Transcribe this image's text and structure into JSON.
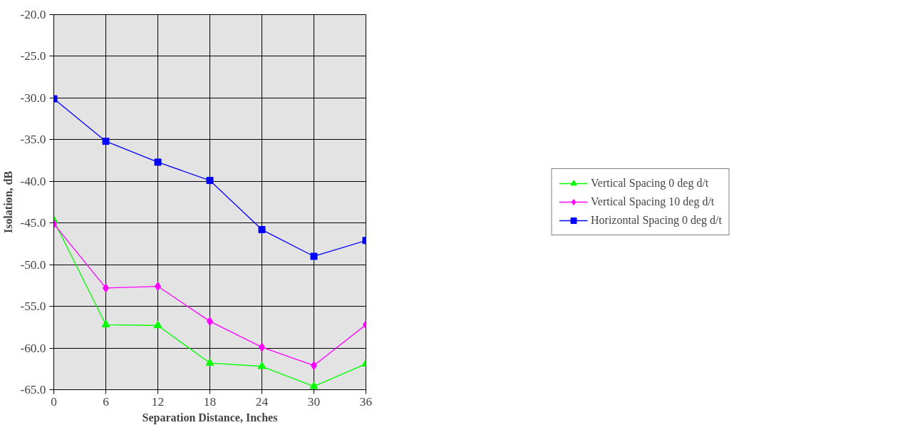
{
  "chart_data": {
    "type": "line",
    "xlabel": "Separation Distance, Inches",
    "ylabel": "Isolation, dB",
    "x": [
      0,
      6,
      12,
      18,
      24,
      30,
      36
    ],
    "series": [
      {
        "name": "Vertical Spacing 0 deg d/t",
        "color": "#00ff00",
        "marker": "triangle",
        "values": [
          -44.7,
          -57.2,
          -57.3,
          -61.8,
          -62.2,
          -64.6,
          -61.9
        ]
      },
      {
        "name": "Vertical Spacing 10 deg d/t",
        "color": "#ff00ff",
        "marker": "diamond",
        "values": [
          -45.1,
          -52.8,
          -52.6,
          -56.8,
          -59.9,
          -62.1,
          -57.2
        ]
      },
      {
        "name": "Horizontal Spacing 0 deg d/t",
        "color": "#0000ff",
        "marker": "square",
        "values": [
          -30.1,
          -35.2,
          -37.7,
          -39.9,
          -45.8,
          -49.0,
          -47.1
        ]
      }
    ],
    "xlim": [
      0,
      36
    ],
    "xticks": [
      0,
      6,
      12,
      18,
      24,
      30,
      36
    ],
    "ylim": [
      -65,
      -20
    ],
    "yticks": [
      {
        "value": -65,
        "label": "-65.0"
      },
      {
        "value": -60,
        "label": "-60.0"
      },
      {
        "value": -55,
        "label": "-55.0"
      },
      {
        "value": -50,
        "label": "-50.0"
      },
      {
        "value": -45,
        "label": "-45.0"
      },
      {
        "value": -40,
        "label": "-40.0"
      },
      {
        "value": -35,
        "label": "-35.0"
      },
      {
        "value": -30,
        "label": "-30.0"
      },
      {
        "value": -25,
        "label": "-25.0"
      },
      {
        "value": -20,
        "label": "-20.0"
      }
    ],
    "grid": true,
    "legend": "right",
    "line_style": "solid"
  }
}
